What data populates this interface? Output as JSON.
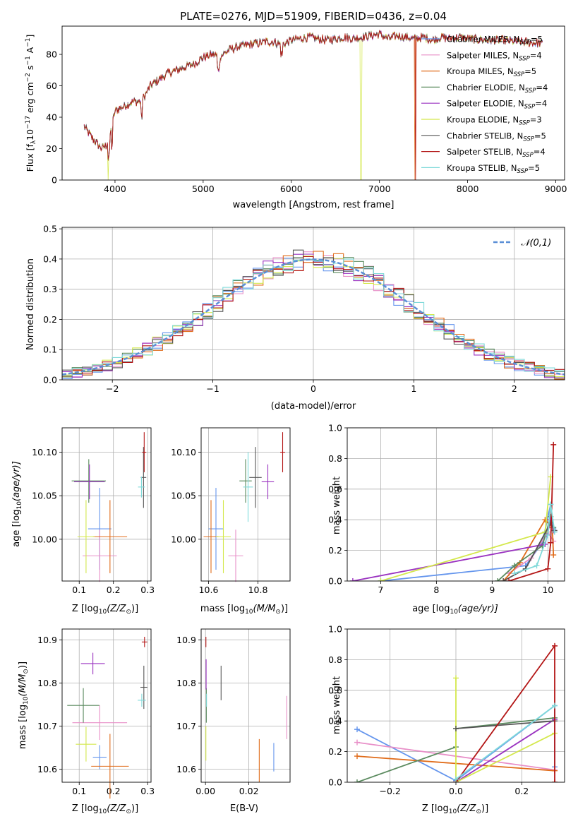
{
  "figure": {
    "title": "PLATE=0276, MJD=51909, FIBERID=0436, z=0.04"
  },
  "legend_models": [
    {
      "id": "chab_miles",
      "prefix": "Chabrier MILES, N",
      "nssp": "5",
      "color": "#6495ed"
    },
    {
      "id": "salp_miles",
      "prefix": "Salpeter MILES, N",
      "nssp": "4",
      "color": "#e88fc8"
    },
    {
      "id": "krou_miles",
      "prefix": "Kroupa MILES, N",
      "nssp": "5",
      "color": "#e06c1a"
    },
    {
      "id": "chab_elodie",
      "prefix": "Chabrier ELODIE, N",
      "nssp": "4",
      "color": "#5a8a5e"
    },
    {
      "id": "salp_elodie",
      "prefix": "Salpeter ELODIE, N",
      "nssp": "4",
      "color": "#9a32c0"
    },
    {
      "id": "krou_elodie",
      "prefix": "Kroupa ELODIE, N",
      "nssp": "3",
      "color": "#d4e84c"
    },
    {
      "id": "chab_stelib",
      "prefix": "Chabrier STELIB, N",
      "nssp": "5",
      "color": "#555555"
    },
    {
      "id": "salp_stelib",
      "prefix": "Salpeter STELIB, N",
      "nssp": "4",
      "color": "#b31515"
    },
    {
      "id": "krou_stelib",
      "prefix": "Kroupa STELIB, N",
      "nssp": "5",
      "color": "#7fd9d9"
    }
  ],
  "chart_data": [
    {
      "id": "spectrum",
      "type": "line",
      "xlabel": "wavelength [Angstrom, rest frame]",
      "ylabel": "Flux [f",
      "ylabel_sub": "λ",
      "ylabel_rest": "10",
      "ylabel_sup1": "−17",
      "ylabel_mid": " erg cm",
      "ylabel_sup2": "−2",
      "ylabel_s": " s",
      "ylabel_sup3": "−1",
      "ylabel_a": " A",
      "ylabel_sup4": "−1",
      "ylabel_end": "]",
      "xlim": [
        3400,
        9100
      ],
      "ylim": [
        0,
        98
      ],
      "xticks": [
        4000,
        5000,
        6000,
        7000,
        8000,
        9000
      ],
      "yticks": [
        0,
        20,
        40,
        60,
        80
      ],
      "continuum": [
        [
          3650,
          34
        ],
        [
          3750,
          26
        ],
        [
          3850,
          20
        ],
        [
          3900,
          22
        ],
        [
          3950,
          30
        ],
        [
          4000,
          44
        ],
        [
          4100,
          47
        ],
        [
          4200,
          50
        ],
        [
          4300,
          50
        ],
        [
          4400,
          60
        ],
        [
          4500,
          64
        ],
        [
          4600,
          68
        ],
        [
          4700,
          70
        ],
        [
          4800,
          72
        ],
        [
          4900,
          74
        ],
        [
          5000,
          78
        ],
        [
          5100,
          80
        ],
        [
          5200,
          79
        ],
        [
          5300,
          83
        ],
        [
          5400,
          85
        ],
        [
          5500,
          86
        ],
        [
          5600,
          87
        ],
        [
          5700,
          88
        ],
        [
          5800,
          88
        ],
        [
          5900,
          86
        ],
        [
          6000,
          89
        ],
        [
          6100,
          90
        ],
        [
          6200,
          91
        ],
        [
          6300,
          90
        ],
        [
          6400,
          89
        ],
        [
          6500,
          90
        ],
        [
          6600,
          91
        ],
        [
          6700,
          90
        ],
        [
          6800,
          91
        ],
        [
          6900,
          92
        ],
        [
          7000,
          93
        ],
        [
          7100,
          90
        ],
        [
          7200,
          92
        ],
        [
          7300,
          91
        ],
        [
          7400,
          90
        ],
        [
          7500,
          91
        ],
        [
          7600,
          89
        ],
        [
          7700,
          91
        ],
        [
          7800,
          90
        ],
        [
          7900,
          91
        ],
        [
          8000,
          90
        ],
        [
          8200,
          89
        ],
        [
          8400,
          89
        ],
        [
          8600,
          88
        ],
        [
          8850,
          87
        ]
      ],
      "dropouts": [
        {
          "model": "krou_elodie",
          "x": 3920
        },
        {
          "model": "krou_elodie",
          "x": 6790
        },
        {
          "model": "krou_miles",
          "x": 7400
        },
        {
          "model": "salp_stelib",
          "x": 7410
        }
      ]
    },
    {
      "id": "residuals",
      "type": "histogram",
      "xlabel": "(data-model)/error",
      "ylabel": "Normed distribution",
      "xlim": [
        -2.5,
        2.5
      ],
      "ylim": [
        0,
        0.505
      ],
      "xticks": [
        -2,
        -1,
        0,
        1,
        2
      ],
      "yticks": [
        0.0,
        0.1,
        0.2,
        0.3,
        0.4,
        0.5
      ],
      "bin_width": 0.1,
      "reference_label": "𝒩(0,1)",
      "reference_color": "#5b8fd6"
    },
    {
      "id": "age_vs_Z",
      "type": "scatter",
      "xlabel": "Z [log",
      "xlabel_sub": "10",
      "xlabel_rest": "(Z/Z",
      "xlabel_sun": "⊙",
      "xlabel_end": ")]",
      "ylabel": "age  [log",
      "ylabel_sub": "10",
      "ylabel_rest": "(age/yr)]",
      "xlim": [
        0.05,
        0.31
      ],
      "ylim": [
        9.952,
        10.128
      ],
      "xticks": [
        0.1,
        0.2,
        0.3
      ],
      "yticks": [
        10.0,
        10.05,
        10.1
      ],
      "points": [
        {
          "model": "chab_miles",
          "x": 0.16,
          "y": 10.012,
          "xerr": 0.034,
          "yerr": 0.047
        },
        {
          "model": "salp_miles",
          "x": 0.16,
          "y": 9.981,
          "xerr": 0.05,
          "yerr": 0.03
        },
        {
          "model": "krou_miles",
          "x": 0.19,
          "y": 10.003,
          "xerr": 0.05,
          "yerr": 0.042
        },
        {
          "model": "chab_elodie",
          "x": 0.128,
          "y": 10.067,
          "xerr": 0.05,
          "yerr": 0.025
        },
        {
          "model": "salp_elodie",
          "x": 0.13,
          "y": 10.066,
          "xerr": 0.045,
          "yerr": 0.02
        },
        {
          "model": "krou_elodie",
          "x": 0.12,
          "y": 10.003,
          "xerr": 0.025,
          "yerr": 0.042
        },
        {
          "model": "chab_stelib",
          "x": 0.288,
          "y": 10.071,
          "xerr": 0.008,
          "yerr": 0.035
        },
        {
          "model": "salp_stelib",
          "x": 0.29,
          "y": 10.1,
          "xerr": 0.006,
          "yerr": 0.023
        },
        {
          "model": "krou_stelib",
          "x": 0.282,
          "y": 10.06,
          "xerr": 0.01,
          "yerr": 0.012
        }
      ]
    },
    {
      "id": "age_vs_mass",
      "type": "scatter",
      "xlabel": "mass [log",
      "xlabel_sub": "10",
      "xlabel_rest": "(M/M",
      "xlabel_sun": "⊙",
      "xlabel_end": ")]",
      "xlim": [
        10.57,
        10.93
      ],
      "ylim": [
        9.952,
        10.128
      ],
      "xticks": [
        10.6,
        10.8
      ],
      "yticks": [
        10.0,
        10.05,
        10.1
      ],
      "points": [
        {
          "model": "chab_miles",
          "x": 10.63,
          "y": 10.012,
          "xerr": 0.03,
          "yerr": 0.047
        },
        {
          "model": "salp_miles",
          "x": 10.71,
          "y": 9.981,
          "xerr": 0.03,
          "yerr": 0.03
        },
        {
          "model": "krou_miles",
          "x": 10.61,
          "y": 10.003,
          "xerr": 0.03,
          "yerr": 0.042
        },
        {
          "model": "chab_elodie",
          "x": 10.75,
          "y": 10.067,
          "xerr": 0.025,
          "yerr": 0.025
        },
        {
          "model": "salp_elodie",
          "x": 10.84,
          "y": 10.066,
          "xerr": 0.025,
          "yerr": 0.02
        },
        {
          "model": "krou_elodie",
          "x": 10.66,
          "y": 10.003,
          "xerr": 0.03,
          "yerr": 0.042
        },
        {
          "model": "chab_stelib",
          "x": 10.79,
          "y": 10.071,
          "xerr": 0.025,
          "yerr": 0.035
        },
        {
          "model": "salp_stelib",
          "x": 10.9,
          "y": 10.1,
          "xerr": 0.01,
          "yerr": 0.023
        },
        {
          "model": "krou_stelib",
          "x": 10.76,
          "y": 10.06,
          "xerr": 0.02,
          "yerr": 0.04
        }
      ]
    },
    {
      "id": "weight_vs_age",
      "type": "line",
      "xlabel": "age  [log",
      "xlabel_sub": "10",
      "xlabel_rest": "(age/yr)]",
      "ylabel": "mass weight",
      "xlim": [
        6.4,
        10.3
      ],
      "ylim": [
        0,
        1.0
      ],
      "xticks": [
        7,
        8,
        9,
        10
      ],
      "yticks": [
        0.0,
        0.2,
        0.4,
        0.6,
        0.8,
        1.0
      ],
      "series": [
        {
          "model": "chab_miles",
          "points": [
            [
              7.0,
              0.0
            ],
            [
              9.6,
              0.1
            ],
            [
              9.9,
              0.25
            ],
            [
              10.05,
              0.5
            ],
            [
              10.1,
              0.34
            ]
          ]
        },
        {
          "model": "salp_miles",
          "points": [
            [
              9.3,
              0.05
            ],
            [
              9.7,
              0.15
            ],
            [
              10.0,
              0.32
            ],
            [
              10.1,
              0.26
            ]
          ]
        },
        {
          "model": "krou_miles",
          "points": [
            [
              9.2,
              0.0
            ],
            [
              9.5,
              0.12
            ],
            [
              9.95,
              0.4
            ],
            [
              10.08,
              0.35
            ],
            [
              10.1,
              0.17
            ]
          ]
        },
        {
          "model": "chab_elodie",
          "points": [
            [
              9.1,
              0.0
            ],
            [
              9.4,
              0.1
            ],
            [
              9.9,
              0.23
            ],
            [
              10.05,
              0.42
            ],
            [
              10.1,
              0.35
            ]
          ]
        },
        {
          "model": "salp_elodie",
          "points": [
            [
              6.5,
              0.0
            ],
            [
              9.95,
              0.24
            ],
            [
              10.05,
              0.4
            ],
            [
              10.1,
              0.33
            ]
          ]
        },
        {
          "model": "krou_elodie",
          "points": [
            [
              7.0,
              0.0
            ],
            [
              9.95,
              0.32
            ],
            [
              10.05,
              0.68
            ]
          ]
        },
        {
          "model": "chab_stelib",
          "points": [
            [
              9.2,
              0.0
            ],
            [
              9.6,
              0.08
            ],
            [
              10.05,
              0.38
            ],
            [
              10.12,
              0.33
            ]
          ]
        },
        {
          "model": "salp_stelib",
          "points": [
            [
              9.3,
              0.0
            ],
            [
              10.0,
              0.08
            ],
            [
              10.05,
              0.25
            ],
            [
              10.1,
              0.89
            ]
          ]
        },
        {
          "model": "krou_stelib",
          "points": [
            [
              9.4,
              0.05
            ],
            [
              9.8,
              0.1
            ],
            [
              10.0,
              0.3
            ],
            [
              10.05,
              0.5
            ],
            [
              10.12,
              0.32
            ]
          ]
        }
      ]
    },
    {
      "id": "mass_vs_Z",
      "type": "scatter",
      "xlabel": "Z [log",
      "xlabel_sub": "10",
      "xlabel_rest": "(Z/Z",
      "xlabel_sun": "⊙",
      "xlabel_end": ")]",
      "ylabel": "mass [log",
      "ylabel_sub": "10",
      "ylabel_rest": "(M/M",
      "ylabel_sun": "⊙",
      "ylabel_end": ")]",
      "xlim": [
        0.05,
        0.31
      ],
      "ylim": [
        10.57,
        10.925
      ],
      "xticks": [
        0.1,
        0.2,
        0.3
      ],
      "yticks": [
        10.6,
        10.7,
        10.8,
        10.9
      ],
      "points": [
        {
          "model": "chab_miles",
          "x": 0.16,
          "y": 10.628,
          "xerr": 0.02,
          "yerr": 0.028
        },
        {
          "model": "salp_miles",
          "x": 0.16,
          "y": 10.708,
          "xerr": 0.08,
          "yerr": 0.04
        },
        {
          "model": "krou_miles",
          "x": 0.19,
          "y": 10.607,
          "xerr": 0.055,
          "yerr": 0.075
        },
        {
          "model": "chab_elodie",
          "x": 0.112,
          "y": 10.748,
          "xerr": 0.047,
          "yerr": 0.04
        },
        {
          "model": "salp_elodie",
          "x": 0.14,
          "y": 10.845,
          "xerr": 0.035,
          "yerr": 0.025
        },
        {
          "model": "krou_elodie",
          "x": 0.12,
          "y": 10.658,
          "xerr": 0.03,
          "yerr": 0.04
        },
        {
          "model": "chab_stelib",
          "x": 0.289,
          "y": 10.79,
          "xerr": 0.01,
          "yerr": 0.05
        },
        {
          "model": "salp_stelib",
          "x": 0.291,
          "y": 10.895,
          "xerr": 0.008,
          "yerr": 0.012
        },
        {
          "model": "krou_stelib",
          "x": 0.283,
          "y": 10.76,
          "xerr": 0.012,
          "yerr": 0.015
        }
      ]
    },
    {
      "id": "mass_vs_ebv",
      "type": "scatter",
      "xlabel": "E(B-V)",
      "xlim": [
        -0.002,
        0.039
      ],
      "ylim": [
        10.57,
        10.925
      ],
      "xticks": [
        0.0,
        0.02
      ],
      "yticks": [
        10.6,
        10.7,
        10.8,
        10.9
      ],
      "points": [
        {
          "model": "chab_miles",
          "x": 0.0315,
          "y": 10.628,
          "xerr": 0,
          "yerr": 0.033
        },
        {
          "model": "salp_miles",
          "x": 0.0375,
          "y": 10.72,
          "xerr": 0,
          "yerr": 0.05
        },
        {
          "model": "krou_miles",
          "x": 0.0248,
          "y": 10.62,
          "xerr": 0,
          "yerr": 0.05
        },
        {
          "model": "chab_elodie",
          "x": 0.0004,
          "y": 10.748,
          "xerr": 0,
          "yerr": 0.04
        },
        {
          "model": "salp_elodie",
          "x": 0.0003,
          "y": 10.82,
          "xerr": 0,
          "yerr": 0.035
        },
        {
          "model": "krou_elodie",
          "x": 0.0002,
          "y": 10.66,
          "xerr": 0,
          "yerr": 0.04
        },
        {
          "model": "chab_stelib",
          "x": 0.0072,
          "y": 10.8,
          "xerr": 0,
          "yerr": 0.04
        },
        {
          "model": "salp_stelib",
          "x": 0.0002,
          "y": 10.895,
          "xerr": 0,
          "yerr": 0.012
        },
        {
          "model": "krou_stelib",
          "x": 0.0005,
          "y": 10.76,
          "xerr": 0,
          "yerr": 0.015
        }
      ]
    },
    {
      "id": "weight_vs_Z",
      "type": "line",
      "xlabel": "Z [log",
      "xlabel_sub": "10",
      "xlabel_rest": "(Z/Z",
      "xlabel_sun": "⊙",
      "xlabel_end": ")]",
      "ylabel": "mass weight",
      "xlim": [
        -0.33,
        0.33
      ],
      "ylim": [
        0,
        1.0
      ],
      "xticks": [
        -0.2,
        0.0,
        0.2
      ],
      "yticks": [
        0.0,
        0.2,
        0.4,
        0.6,
        0.8,
        1.0
      ],
      "series": [
        {
          "model": "chab_miles",
          "points": [
            [
              -0.3,
              0.345
            ],
            [
              0.0,
              0.01
            ],
            [
              0.3,
              0.5
            ],
            [
              0.3,
              0.1
            ]
          ]
        },
        {
          "model": "salp_miles",
          "points": [
            [
              -0.3,
              0.26
            ],
            [
              0.3,
              0.08
            ]
          ]
        },
        {
          "model": "krou_miles",
          "points": [
            [
              -0.3,
              0.17
            ],
            [
              0.3,
              0.075
            ]
          ]
        },
        {
          "model": "chab_elodie",
          "points": [
            [
              -0.3,
              0.0
            ],
            [
              0.0,
              0.23
            ],
            [
              0.0,
              0.35
            ],
            [
              0.3,
              0.42
            ]
          ]
        },
        {
          "model": "salp_elodie",
          "points": [
            [
              0.0,
              0.0
            ],
            [
              0.3,
              0.41
            ]
          ]
        },
        {
          "model": "krou_elodie",
          "points": [
            [
              0.0,
              0.68
            ],
            [
              0.0,
              0.0
            ],
            [
              0.3,
              0.32
            ]
          ]
        },
        {
          "model": "chab_stelib",
          "points": [
            [
              0.0,
              0.35
            ],
            [
              0.3,
              0.4
            ]
          ]
        },
        {
          "model": "salp_stelib",
          "points": [
            [
              0.0,
              0.0
            ],
            [
              0.3,
              0.89
            ],
            [
              0.3,
              0.0
            ]
          ]
        },
        {
          "model": "krou_stelib",
          "points": [
            [
              0.0,
              0.02
            ],
            [
              0.3,
              0.5
            ]
          ]
        }
      ]
    }
  ]
}
